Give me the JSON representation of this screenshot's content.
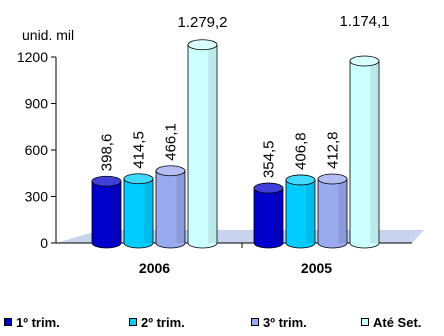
{
  "chart_data": {
    "type": "bar",
    "categories": [
      "2006",
      "2005"
    ],
    "series": [
      {
        "name": "1º trim.",
        "values": [
          398.6,
          354.5
        ],
        "labels": [
          "398,6",
          "354,5"
        ],
        "color": "#0000cc"
      },
      {
        "name": "2º trim.",
        "values": [
          414.5,
          406.8
        ],
        "labels": [
          "414,5",
          "406,8"
        ],
        "color": "#00ccff"
      },
      {
        "name": "3º trim.",
        "values": [
          466.1,
          412.8
        ],
        "labels": [
          "466,1",
          "412,8"
        ],
        "color": "#99aaee"
      },
      {
        "name": "Até Set.",
        "values": [
          1279.2,
          1174.1
        ],
        "labels": [
          "1.279,2",
          "1.174,1"
        ],
        "color": "#ccffff"
      }
    ],
    "ylabel": "unid. mil",
    "ylim": [
      0,
      1200
    ],
    "yticks": [
      0,
      300,
      600,
      900,
      1200
    ],
    "legend_position": "bottom",
    "grid": false
  }
}
